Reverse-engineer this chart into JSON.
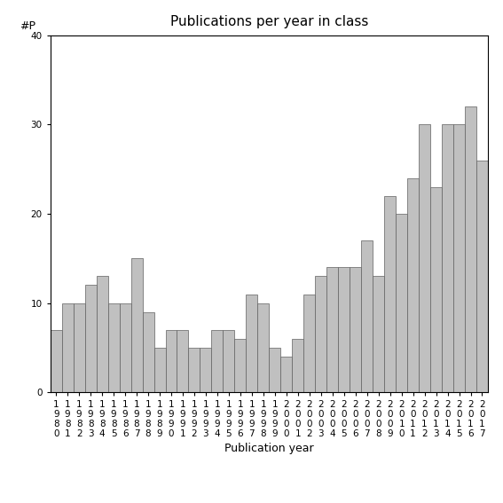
{
  "years": [
    "1980",
    "1981",
    "1982",
    "1983",
    "1984",
    "1985",
    "1986",
    "1987",
    "1988",
    "1989",
    "1990",
    "1991",
    "1992",
    "1993",
    "1994",
    "1995",
    "1996",
    "1997",
    "1998",
    "1999",
    "2000",
    "2001",
    "2002",
    "2003",
    "2004",
    "2005",
    "2006",
    "2007",
    "2008",
    "2009",
    "2010",
    "2011",
    "2012",
    "2013",
    "2014",
    "2015",
    "2016",
    "2017"
  ],
  "values": [
    7,
    10,
    10,
    12,
    13,
    10,
    10,
    15,
    9,
    5,
    7,
    7,
    5,
    5,
    7,
    7,
    6,
    11,
    10,
    5,
    4,
    6,
    11,
    13,
    14,
    14,
    14,
    17,
    13,
    22,
    20,
    24,
    30,
    23,
    30,
    30,
    32,
    26
  ],
  "last_bar_value": 1,
  "title": "Publications per year in class",
  "xlabel": "Publication year",
  "ylabel": "#P",
  "ylim": [
    0,
    40
  ],
  "yticks": [
    0,
    10,
    20,
    30,
    40
  ],
  "bar_color": "#c0c0c0",
  "bar_edgecolor": "#606060",
  "background_color": "#ffffff",
  "title_fontsize": 11,
  "label_fontsize": 9,
  "tick_fontsize": 7.5
}
